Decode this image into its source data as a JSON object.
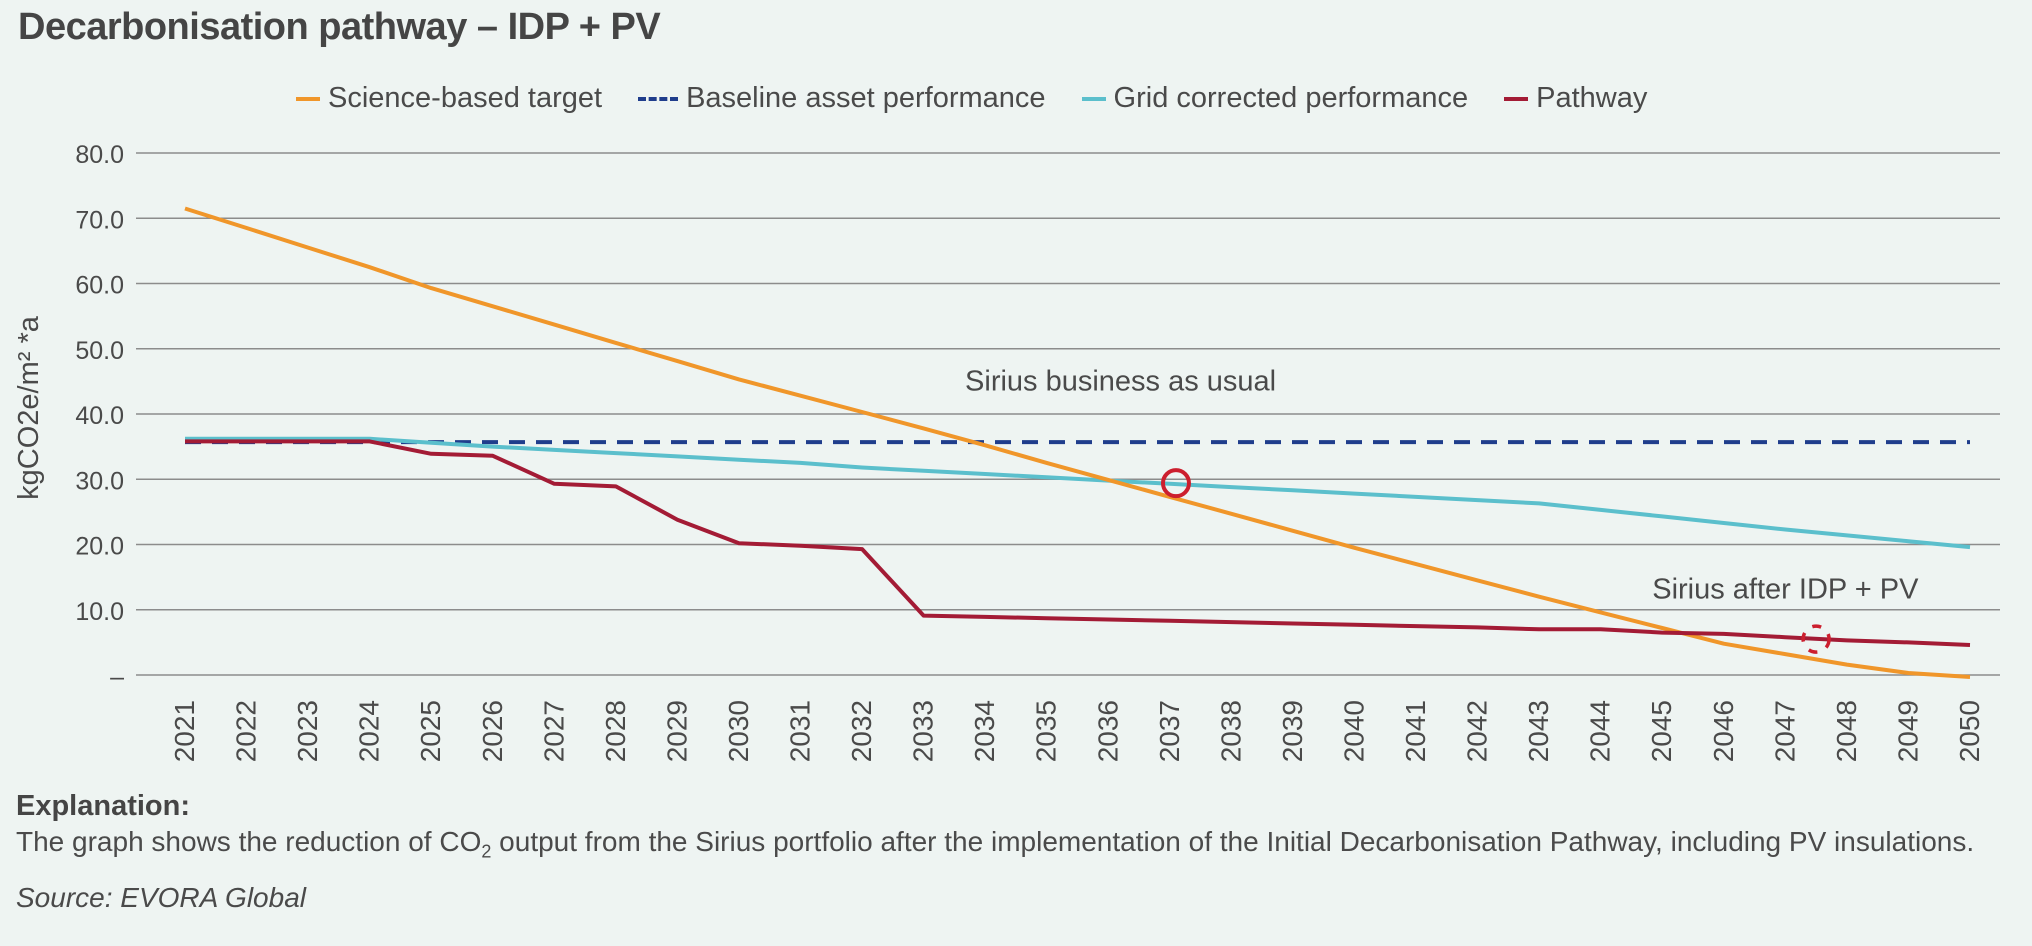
{
  "title": "Decarbonisation pathway – IDP + PV",
  "chart_data": {
    "type": "line",
    "title": "Decarbonisation pathway – IDP + PV",
    "ylabel": "kgCO2e/m² *a",
    "ylim": [
      0,
      80
    ],
    "yticks": [
      "–",
      "10.0",
      "20.0",
      "30.0",
      "40.0",
      "50.0",
      "60.0",
      "70.0",
      "80.0"
    ],
    "grid": true,
    "legend_position": "top",
    "x": [
      2021,
      2022,
      2023,
      2024,
      2025,
      2026,
      2027,
      2028,
      2029,
      2030,
      2031,
      2032,
      2033,
      2034,
      2035,
      2036,
      2037,
      2038,
      2039,
      2040,
      2041,
      2042,
      2043,
      2044,
      2045,
      2046,
      2047,
      2048,
      2049,
      2050
    ],
    "series": [
      {
        "name": "Science-based target",
        "color": "#f0962a",
        "style": "solid",
        "values": [
          71.5,
          68.5,
          65.5,
          62.5,
          59.3,
          56.5,
          53.7,
          50.9,
          48.1,
          45.3,
          42.8,
          40.3,
          37.8,
          35.2,
          32.5,
          29.9,
          27.3,
          24.7,
          22.1,
          19.5,
          17.0,
          14.5,
          12.0,
          9.6,
          7.2,
          4.8,
          3.2,
          1.6,
          0.3,
          -0.3
        ]
      },
      {
        "name": "Baseline asset performance",
        "color": "#1f3d8c",
        "style": "dashed",
        "values": [
          35.7,
          35.7,
          35.7,
          35.7,
          35.7,
          35.7,
          35.7,
          35.7,
          35.7,
          35.7,
          35.7,
          35.7,
          35.7,
          35.7,
          35.7,
          35.7,
          35.7,
          35.7,
          35.7,
          35.7,
          35.7,
          35.7,
          35.7,
          35.7,
          35.7,
          35.7,
          35.7,
          35.7,
          35.7,
          35.7
        ]
      },
      {
        "name": "Grid corrected performance",
        "color": "#5bbfcc",
        "style": "solid",
        "values": [
          36.2,
          36.2,
          36.2,
          36.2,
          35.6,
          35.0,
          34.5,
          34.0,
          33.5,
          33.0,
          32.5,
          31.8,
          31.3,
          30.8,
          30.3,
          29.8,
          29.3,
          28.8,
          28.3,
          27.8,
          27.3,
          26.8,
          26.3,
          25.3,
          24.3,
          23.3,
          22.3,
          21.4,
          20.5,
          19.6
        ]
      },
      {
        "name": "Pathway",
        "color": "#a31b35",
        "style": "solid",
        "values": [
          35.8,
          35.8,
          35.8,
          35.8,
          33.9,
          33.6,
          29.3,
          28.9,
          23.8,
          20.2,
          19.8,
          19.3,
          9.1,
          8.9,
          8.7,
          8.5,
          8.3,
          8.1,
          7.9,
          7.7,
          7.5,
          7.3,
          7.0,
          7.0,
          6.5,
          6.3,
          5.8,
          5.3,
          5.0,
          4.6
        ]
      }
    ],
    "annotations": [
      {
        "text": "Sirius business as usual",
        "x": 2036.2,
        "y": 43.6
      },
      {
        "text": "Sirius after IDP + PV",
        "x": 2047.0,
        "y": 11.7
      }
    ],
    "markers": [
      {
        "shape": "circle",
        "style": "solid",
        "color": "#cc1f2e",
        "x": 2037.1,
        "y": 29.4
      },
      {
        "shape": "circle",
        "style": "dashed",
        "color": "#cc1f2e",
        "x": 2047.5,
        "y": 5.5
      }
    ]
  },
  "explanation": {
    "heading": "Explanation:",
    "text_before": "The graph shows the reduction of CO",
    "subscript": "2",
    "text_after": " output from the Sirius portfolio after the implementation of the Initial Decarbonisation Pathway, including PV insulations."
  },
  "source": "Source: EVORA Global"
}
